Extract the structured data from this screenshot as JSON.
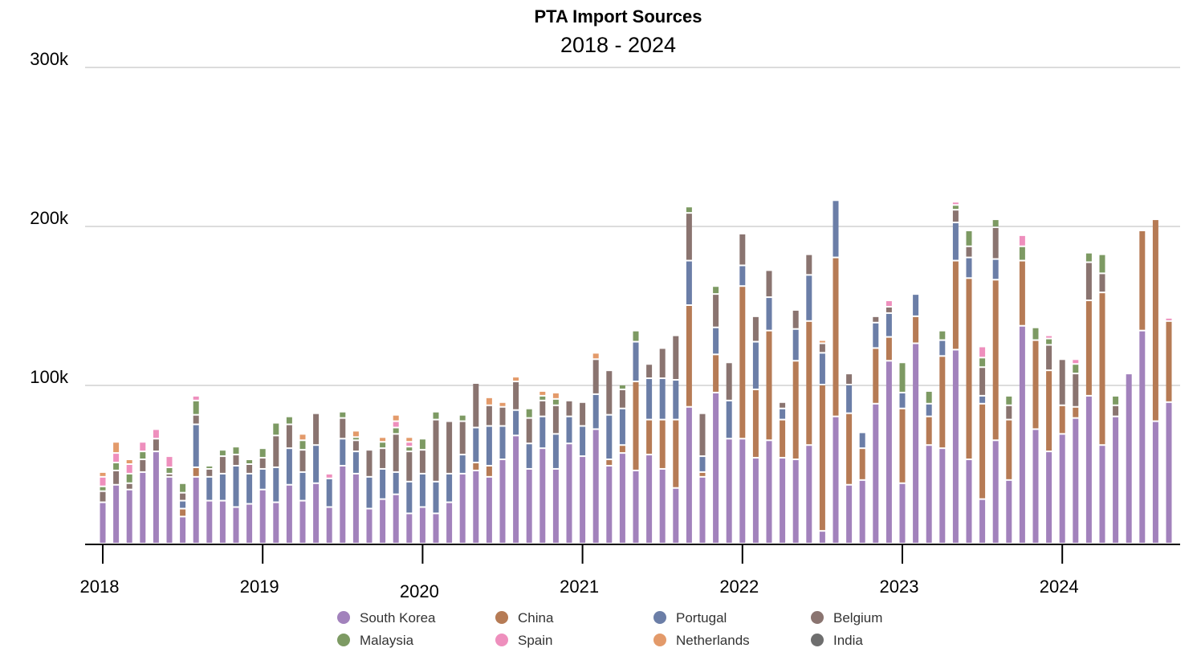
{
  "chart_data": {
    "type": "bar",
    "stacked": true,
    "title": "PTA Import Sources",
    "subtitle": "2018 - 2024",
    "xlabel": "",
    "ylabel": "",
    "ylim": [
      0,
      300000
    ],
    "y_ticks": [
      {
        "value": 100000,
        "label": "100k"
      },
      {
        "value": 200000,
        "label": "200k"
      },
      {
        "value": 300000,
        "label": "300k"
      }
    ],
    "x_ticks": [
      {
        "month_index": 0,
        "label": "2018"
      },
      {
        "month_index": 12,
        "label": "2019"
      },
      {
        "month_index": 24,
        "label": "2020"
      },
      {
        "month_index": 36,
        "label": "2021"
      },
      {
        "month_index": 48,
        "label": "2022"
      },
      {
        "month_index": 60,
        "label": "2023"
      },
      {
        "month_index": 72,
        "label": "2024"
      }
    ],
    "grid": true,
    "legend_position": "bottom",
    "series": [
      {
        "name": "South Korea",
        "color": "#a282bc",
        "values": [
          26000,
          37000,
          34000,
          45000,
          58000,
          42000,
          17000,
          42000,
          27000,
          27000,
          23000,
          25000,
          34000,
          26000,
          37000,
          27000,
          38000,
          23000,
          49000,
          44000,
          22000,
          28000,
          31000,
          19000,
          23000,
          19000,
          26000,
          44000,
          46000,
          42000,
          53000,
          68000,
          47000,
          60000,
          47000,
          63000,
          55000,
          72000,
          49000,
          57000,
          46000,
          56000,
          47000,
          35000,
          86000,
          42000,
          95000,
          66000,
          66000,
          54000,
          65000,
          54000,
          53000,
          62000,
          8000,
          80000,
          37000,
          40000,
          88000,
          115000,
          38000,
          126000,
          62000,
          60000,
          122000,
          53000,
          28000,
          65000,
          40000,
          137000,
          72000,
          58000,
          69000,
          79000,
          93000,
          62000,
          80000,
          107000,
          134000,
          77000,
          89000
        ]
      },
      {
        "name": "China",
        "color": "#b67b55",
        "values": [
          0,
          0,
          0,
          0,
          0,
          0,
          5000,
          6000,
          0,
          0,
          0,
          0,
          0,
          0,
          0,
          0,
          0,
          0,
          0,
          0,
          0,
          0,
          0,
          0,
          0,
          0,
          0,
          0,
          5000,
          7000,
          0,
          0,
          0,
          0,
          0,
          0,
          0,
          0,
          4000,
          5000,
          56000,
          22000,
          31000,
          43000,
          64000,
          3000,
          24000,
          0,
          96000,
          43000,
          69000,
          24000,
          62000,
          78000,
          92000,
          100000,
          45000,
          20000,
          35000,
          15000,
          47000,
          17000,
          18000,
          58000,
          56000,
          114000,
          60000,
          101000,
          38000,
          41000,
          56000,
          51000,
          18000,
          7000,
          60000,
          96000,
          0,
          0,
          63000,
          127000,
          51000
        ]
      },
      {
        "name": "Portugal",
        "color": "#6b7ea7",
        "values": [
          0,
          0,
          0,
          0,
          0,
          0,
          5000,
          27000,
          15000,
          17000,
          26000,
          19000,
          13000,
          22000,
          23000,
          18000,
          24000,
          18000,
          17000,
          14000,
          20000,
          19000,
          14000,
          20000,
          21000,
          20000,
          18000,
          12000,
          22000,
          25000,
          21000,
          16000,
          16000,
          20000,
          22000,
          17000,
          19000,
          22000,
          28000,
          23000,
          25000,
          26000,
          26000,
          25000,
          28000,
          10000,
          17000,
          24000,
          13000,
          30000,
          21000,
          7000,
          20000,
          29000,
          20000,
          36000,
          18000,
          10000,
          16000,
          15000,
          10000,
          14000,
          8000,
          10000,
          24000,
          13000,
          5000,
          13000,
          0,
          0,
          0,
          0,
          0,
          0,
          0,
          0,
          0,
          0,
          0,
          0,
          0
        ]
      },
      {
        "name": "Belgium",
        "color": "#8a7470",
        "values": [
          7000,
          9000,
          4000,
          8000,
          8000,
          2000,
          5000,
          6000,
          5000,
          11000,
          7000,
          6000,
          7000,
          20000,
          15000,
          14000,
          20000,
          0,
          13000,
          7000,
          17000,
          13000,
          24000,
          19000,
          15000,
          39000,
          33000,
          21000,
          28000,
          13000,
          12000,
          18000,
          16000,
          10000,
          18000,
          10000,
          15000,
          22000,
          28000,
          12000,
          0,
          9000,
          19000,
          28000,
          30000,
          27000,
          21000,
          24000,
          20000,
          16000,
          17000,
          4000,
          12000,
          13000,
          6000,
          0,
          7000,
          0,
          4000,
          4000,
          0,
          0,
          0,
          0,
          8000,
          7000,
          18000,
          20000,
          9000,
          0,
          0,
          16000,
          29000,
          21000,
          24000,
          12000,
          7000,
          0,
          0,
          0,
          0
        ]
      },
      {
        "name": "Malaysia",
        "color": "#7d9a63",
        "values": [
          3000,
          5000,
          6000,
          5000,
          0,
          4000,
          6000,
          9000,
          2000,
          4000,
          5000,
          3000,
          6000,
          8000,
          5000,
          6000,
          0,
          0,
          4000,
          2000,
          0,
          4000,
          4000,
          3000,
          7000,
          5000,
          0,
          4000,
          0,
          0,
          0,
          0,
          6000,
          3000,
          4000,
          0,
          0,
          0,
          0,
          3000,
          7000,
          0,
          0,
          0,
          4000,
          0,
          5000,
          0,
          0,
          0,
          0,
          0,
          0,
          0,
          0,
          0,
          0,
          0,
          0,
          0,
          19000,
          0,
          8000,
          6000,
          3000,
          10000,
          6000,
          5000,
          6000,
          9000,
          8000,
          4000,
          0,
          6000,
          6000,
          12000,
          6000,
          0,
          0,
          0,
          0
        ]
      },
      {
        "name": "Spain",
        "color": "#ee8fbd",
        "values": [
          6000,
          6000,
          6000,
          6000,
          6000,
          7000,
          0,
          3000,
          0,
          0,
          0,
          0,
          0,
          0,
          0,
          0,
          0,
          3000,
          0,
          0,
          0,
          0,
          4000,
          3000,
          0,
          0,
          0,
          0,
          0,
          0,
          0,
          0,
          0,
          0,
          0,
          0,
          0,
          0,
          0,
          0,
          0,
          0,
          0,
          0,
          0,
          0,
          0,
          0,
          0,
          0,
          0,
          0,
          0,
          0,
          0,
          0,
          0,
          0,
          0,
          4000,
          0,
          0,
          0,
          0,
          2000,
          0,
          7000,
          0,
          0,
          7000,
          0,
          2000,
          0,
          3000,
          0,
          0,
          0,
          0,
          0,
          0,
          2000
        ]
      },
      {
        "name": "Netherlands",
        "color": "#e39a6a",
        "values": [
          3000,
          7000,
          3000,
          0,
          0,
          0,
          0,
          0,
          0,
          0,
          0,
          0,
          0,
          0,
          0,
          4000,
          0,
          0,
          0,
          4000,
          0,
          3000,
          4000,
          3000,
          0,
          0,
          0,
          0,
          0,
          5000,
          3000,
          3000,
          0,
          3000,
          4000,
          0,
          0,
          4000,
          0,
          0,
          0,
          0,
          0,
          0,
          0,
          0,
          0,
          0,
          0,
          0,
          0,
          0,
          0,
          0,
          2000,
          0,
          0,
          0,
          0,
          0,
          0,
          0,
          0,
          0,
          0,
          0,
          0,
          0,
          0,
          0,
          0,
          0,
          0,
          0,
          0,
          0,
          0,
          0,
          0,
          0,
          0
        ]
      },
      {
        "name": "India",
        "color": "#6e6e6e",
        "values": [
          0,
          0,
          0,
          0,
          0,
          0,
          0,
          0,
          0,
          0,
          0,
          0,
          0,
          0,
          0,
          0,
          0,
          0,
          0,
          0,
          0,
          0,
          0,
          0,
          0,
          0,
          0,
          0,
          0,
          0,
          0,
          0,
          0,
          0,
          0,
          0,
          0,
          0,
          0,
          0,
          0,
          0,
          0,
          0,
          0,
          0,
          0,
          0,
          0,
          0,
          0,
          0,
          0,
          0,
          0,
          0,
          0,
          0,
          0,
          0,
          0,
          0,
          0,
          0,
          0,
          0,
          0,
          0,
          0,
          0,
          0,
          0,
          0,
          0,
          0,
          0,
          0,
          0,
          0,
          0,
          0
        ]
      }
    ]
  }
}
